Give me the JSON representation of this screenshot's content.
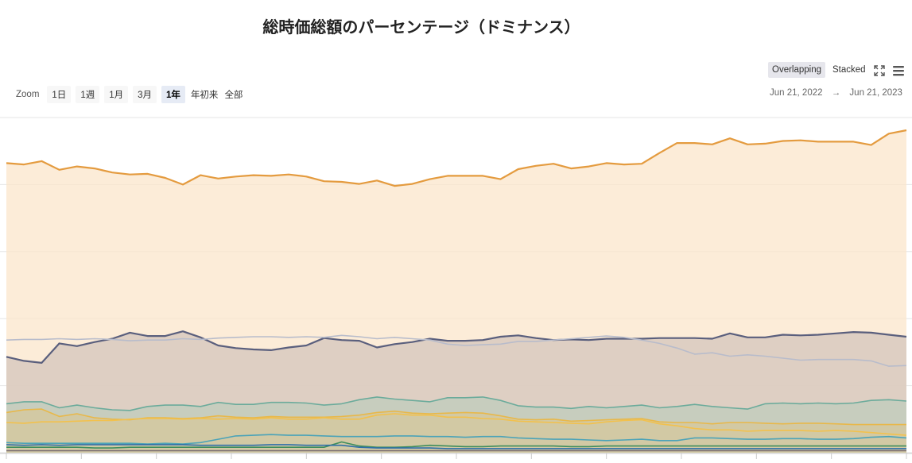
{
  "title": "総時価総額のパーセンテージ（ドミナンス）",
  "toolbar": {
    "modes": [
      "Overlapping",
      "Stacked"
    ],
    "active_mode": "Overlapping",
    "zoom_label": "Zoom",
    "zoom_options": [
      "1日",
      "1週",
      "1月",
      "3月",
      "1年",
      "年初来",
      "全部"
    ],
    "active_zoom": "1年",
    "range_start": "Jun 21, 2022",
    "range_arrow": "→",
    "range_end": "Jun 21, 2023"
  },
  "chart_data": {
    "type": "area",
    "x_start": "Jun 21, 2022",
    "x_end": "Jun 21, 2023",
    "ylim": [
      0,
      50
    ],
    "grid": true,
    "legend": "none",
    "series": [
      {
        "color": "#e49b3f",
        "fill": "#fbe6cb",
        "values": [
          43.2,
          43.0,
          43.5,
          42.2,
          42.7,
          42.4,
          41.8,
          41.5,
          41.6,
          41.0,
          40.0,
          41.4,
          40.9,
          41.2,
          41.4,
          41.3,
          41.5,
          41.2,
          40.5,
          40.4,
          40.1,
          40.6,
          39.8,
          40.1,
          40.8,
          41.3,
          41.3,
          41.3,
          40.8,
          42.3,
          42.8,
          43.1,
          42.4,
          42.7,
          43.2,
          43.0,
          43.1,
          44.7,
          46.2,
          46.2,
          46.0,
          46.9,
          46.0,
          46.1,
          46.5,
          46.6,
          46.4,
          46.4,
          46.4,
          45.9,
          47.6,
          48.1
        ]
      },
      {
        "color": "#5a5f7d",
        "fill": "#d4c6bc",
        "values": [
          14.3,
          13.7,
          13.4,
          16.3,
          15.9,
          16.5,
          17.0,
          17.9,
          17.4,
          17.4,
          18.1,
          17.2,
          16.0,
          15.6,
          15.4,
          15.3,
          15.7,
          16.0,
          17.1,
          16.8,
          16.7,
          15.7,
          16.2,
          16.5,
          17.0,
          16.7,
          16.7,
          16.8,
          17.3,
          17.5,
          17.1,
          16.8,
          16.9,
          16.8,
          17.0,
          17.0,
          17.0,
          17.1,
          17.1,
          17.1,
          17.0,
          17.8,
          17.2,
          17.2,
          17.6,
          17.5,
          17.6,
          17.8,
          18.0,
          17.9,
          17.6,
          17.3
        ]
      },
      {
        "color": "#b8bccb",
        "fill": "none",
        "values": [
          16.8,
          16.9,
          16.9,
          17.0,
          16.9,
          17.0,
          16.9,
          16.7,
          16.8,
          16.8,
          17.0,
          16.9,
          17.1,
          17.2,
          17.3,
          17.3,
          17.2,
          17.3,
          17.2,
          17.5,
          17.3,
          17.0,
          17.2,
          17.0,
          16.8,
          16.2,
          16.0,
          16.1,
          16.2,
          16.6,
          16.6,
          16.8,
          17.0,
          17.2,
          17.4,
          17.2,
          16.8,
          16.3,
          15.6,
          14.7,
          14.9,
          14.4,
          14.6,
          14.4,
          14.1,
          13.8,
          13.9,
          13.9,
          13.9,
          13.7,
          12.9,
          13.0
        ]
      },
      {
        "color": "#6bab9b",
        "fill": "#bfccbc",
        "values": [
          7.3,
          7.6,
          7.6,
          6.7,
          7.1,
          6.7,
          6.4,
          6.3,
          6.9,
          7.1,
          7.1,
          6.9,
          7.5,
          7.2,
          7.2,
          7.5,
          7.5,
          7.4,
          7.1,
          7.3,
          7.9,
          8.3,
          8.0,
          7.8,
          7.6,
          8.2,
          8.2,
          8.3,
          7.8,
          7.0,
          6.8,
          6.8,
          6.6,
          6.9,
          6.7,
          6.9,
          7.1,
          6.7,
          6.9,
          7.2,
          6.9,
          6.7,
          6.5,
          7.3,
          7.4,
          7.3,
          7.4,
          7.3,
          7.4,
          7.8,
          7.9,
          7.7
        ]
      },
      {
        "color": "#e8b84a",
        "fill": "#d5c79b",
        "values": [
          6.0,
          6.4,
          6.5,
          5.4,
          5.8,
          5.2,
          5.0,
          4.9,
          5.2,
          5.2,
          5.1,
          5.2,
          5.5,
          5.3,
          5.2,
          5.4,
          5.3,
          5.3,
          5.3,
          5.4,
          5.6,
          6.0,
          6.2,
          5.9,
          5.8,
          5.9,
          6.0,
          5.9,
          5.5,
          5.0,
          4.9,
          5.0,
          4.7,
          4.8,
          4.9,
          5.0,
          5.1,
          4.6,
          4.5,
          4.5,
          4.3,
          4.5,
          4.5,
          4.4,
          4.3,
          4.4,
          4.4,
          4.3,
          4.2,
          4.2,
          4.2,
          4.2
        ]
      },
      {
        "color": "#f2c14d",
        "fill": "none",
        "values": [
          4.5,
          4.4,
          4.6,
          4.6,
          4.7,
          4.8,
          4.8,
          5.0,
          5.1,
          5.1,
          5.0,
          5.1,
          5.0,
          5.1,
          5.0,
          5.2,
          5.0,
          5.0,
          5.2,
          5.0,
          5.0,
          5.6,
          5.8,
          5.6,
          5.6,
          5.3,
          5.3,
          5.1,
          5.0,
          4.7,
          4.6,
          4.5,
          4.4,
          4.3,
          4.6,
          4.8,
          4.9,
          4.3,
          4.0,
          3.6,
          3.4,
          3.4,
          3.2,
          3.3,
          3.3,
          3.3,
          3.2,
          3.3,
          3.2,
          3.0,
          2.8,
          2.6
        ]
      },
      {
        "color": "#4ba3b8",
        "fill": "none",
        "values": [
          1.5,
          1.4,
          1.4,
          1.4,
          1.4,
          1.4,
          1.4,
          1.4,
          1.3,
          1.4,
          1.3,
          1.5,
          2.0,
          2.5,
          2.6,
          2.7,
          2.6,
          2.6,
          2.5,
          2.4,
          2.4,
          2.4,
          2.5,
          2.5,
          2.4,
          2.4,
          2.3,
          2.4,
          2.4,
          2.2,
          2.1,
          2.0,
          2.0,
          1.9,
          1.8,
          1.9,
          2.0,
          1.8,
          1.8,
          2.2,
          2.2,
          2.1,
          2.0,
          2.0,
          2.1,
          2.1,
          2.0,
          2.0,
          2.1,
          2.3,
          2.4,
          2.2
        ]
      },
      {
        "color": "#3e8d5c",
        "fill": "none",
        "values": [
          0.8,
          0.8,
          0.8,
          0.8,
          0.8,
          0.7,
          0.7,
          0.8,
          0.8,
          0.8,
          0.8,
          0.8,
          0.8,
          0.8,
          0.8,
          0.8,
          0.8,
          0.8,
          0.8,
          1.6,
          1.0,
          0.8,
          0.8,
          0.9,
          1.1,
          1.0,
          0.9,
          0.9,
          1.0,
          1.0,
          1.0,
          1.0,
          0.9,
          0.9,
          1.0,
          1.0,
          1.0,
          1.0,
          1.0,
          1.0,
          1.0,
          1.0,
          1.0,
          1.0,
          1.0,
          1.0,
          1.0,
          1.0,
          1.0,
          1.0,
          1.0,
          1.0
        ]
      },
      {
        "color": "#2f6fa8",
        "fill": "none",
        "values": [
          1.2,
          1.1,
          1.2,
          1.1,
          1.2,
          1.2,
          1.2,
          1.2,
          1.2,
          1.2,
          1.2,
          1.1,
          1.1,
          1.1,
          1.1,
          1.2,
          1.2,
          1.1,
          1.1,
          1.1,
          0.8,
          0.7,
          0.7,
          0.7,
          0.7,
          0.6,
          0.6,
          0.6,
          0.6,
          0.6,
          0.6,
          0.6,
          0.6,
          0.6,
          0.6,
          0.6,
          0.6,
          0.6,
          0.6,
          0.6,
          0.6,
          0.6,
          0.6,
          0.6,
          0.6,
          0.6,
          0.6,
          0.6,
          0.6,
          0.6,
          0.6,
          0.6
        ]
      },
      {
        "color": "#7a6e72",
        "fill": "none",
        "values": [
          0.3,
          0.3,
          0.3,
          0.3,
          0.3,
          0.3,
          0.3,
          0.3,
          0.3,
          0.3,
          0.3,
          0.3,
          0.3,
          0.3,
          0.3,
          0.3,
          0.3,
          0.3,
          0.3,
          0.3,
          0.3,
          0.3,
          0.3,
          0.3,
          0.3,
          0.3,
          0.3,
          0.3,
          0.3,
          0.3,
          0.3,
          0.3,
          0.3,
          0.3,
          0.3,
          0.3,
          0.3,
          0.3,
          0.3,
          0.3,
          0.3,
          0.3,
          0.3,
          0.3,
          0.3,
          0.3,
          0.3,
          0.3,
          0.3,
          0.3,
          0.3,
          0.3
        ]
      }
    ]
  }
}
